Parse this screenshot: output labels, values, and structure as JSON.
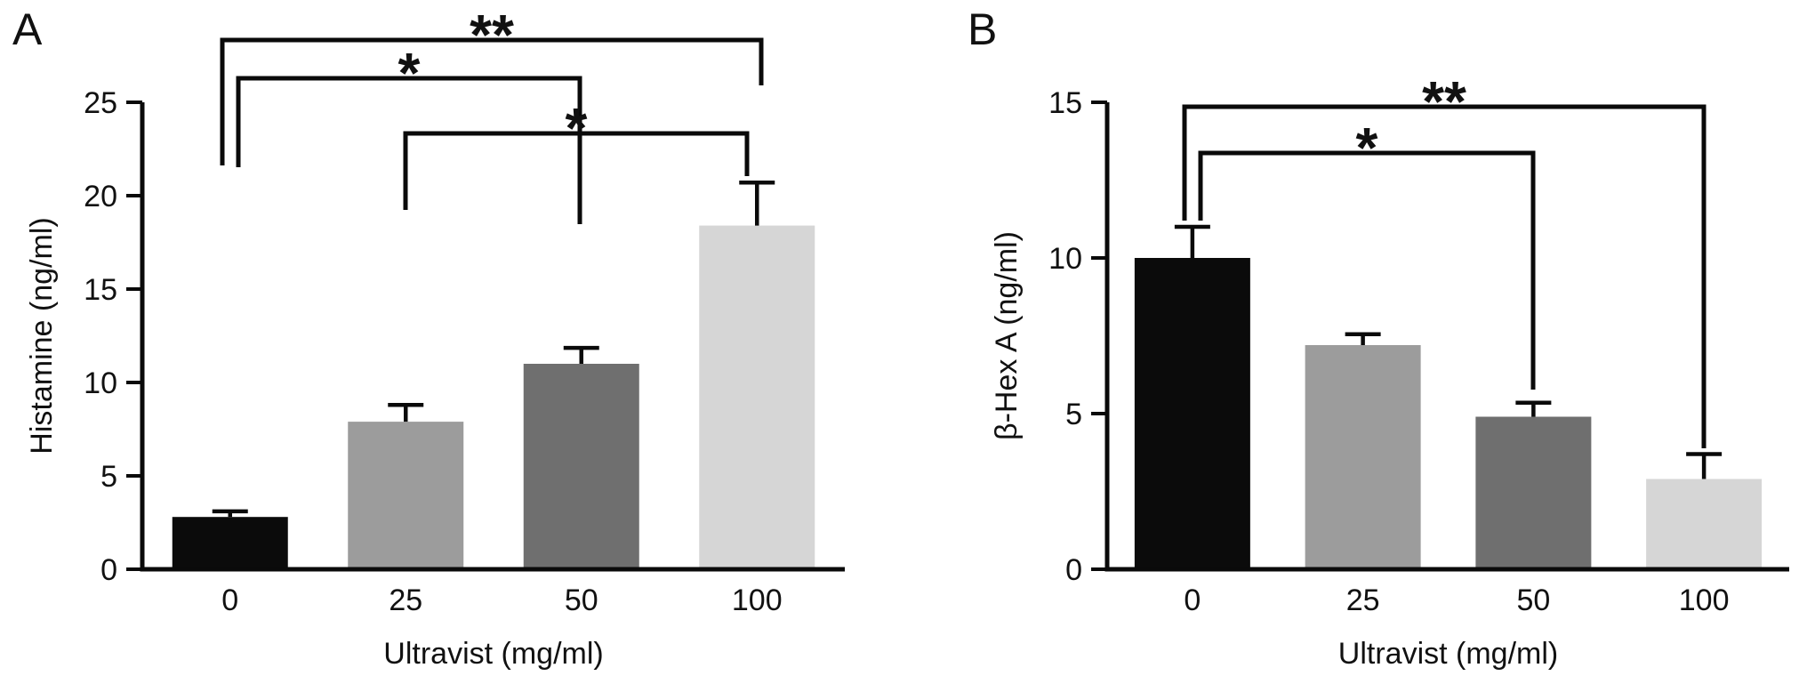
{
  "figure": {
    "background_color": "#ffffff",
    "text_color": "#111111",
    "axis_color": "#0a0a0a"
  },
  "chart_data": [
    {
      "panel_label": "A",
      "type": "bar",
      "categories": [
        "0",
        "25",
        "50",
        "100"
      ],
      "values": [
        2.8,
        7.9,
        11.0,
        18.4
      ],
      "errors": [
        0.3,
        0.9,
        0.85,
        2.3
      ],
      "xlabel": "Ultravist (mg/ml)",
      "ylabel": "Histamine (ng/ml)",
      "ylim": [
        0,
        25
      ],
      "yticks": [
        0,
        5,
        10,
        15,
        20,
        25
      ],
      "grid": false,
      "legend": false,
      "bar_colors": [
        "#0b0b0b",
        "#9c9c9c",
        "#6f6f6f",
        "#d6d6d6"
      ],
      "significance": [
        {
          "from": "0",
          "to": "100",
          "label": "**"
        },
        {
          "from": "0",
          "to": "50",
          "label": "*"
        },
        {
          "from": "25",
          "to": "100",
          "label": "*"
        }
      ]
    },
    {
      "panel_label": "B",
      "type": "bar",
      "categories": [
        "0",
        "25",
        "50",
        "100"
      ],
      "values": [
        10.0,
        7.2,
        4.9,
        2.9
      ],
      "errors": [
        1.0,
        0.35,
        0.45,
        0.8
      ],
      "xlabel": "Ultravist (mg/ml)",
      "ylabel": "β-Hex A (ng/ml)",
      "ylim": [
        0,
        15
      ],
      "yticks": [
        0,
        5,
        10,
        15
      ],
      "grid": false,
      "legend": false,
      "bar_colors": [
        "#0b0b0b",
        "#9c9c9c",
        "#6f6f6f",
        "#d6d6d6"
      ],
      "significance": [
        {
          "from": "0",
          "to": "100",
          "label": "**"
        },
        {
          "from": "0",
          "to": "50",
          "label": "*"
        }
      ]
    }
  ]
}
